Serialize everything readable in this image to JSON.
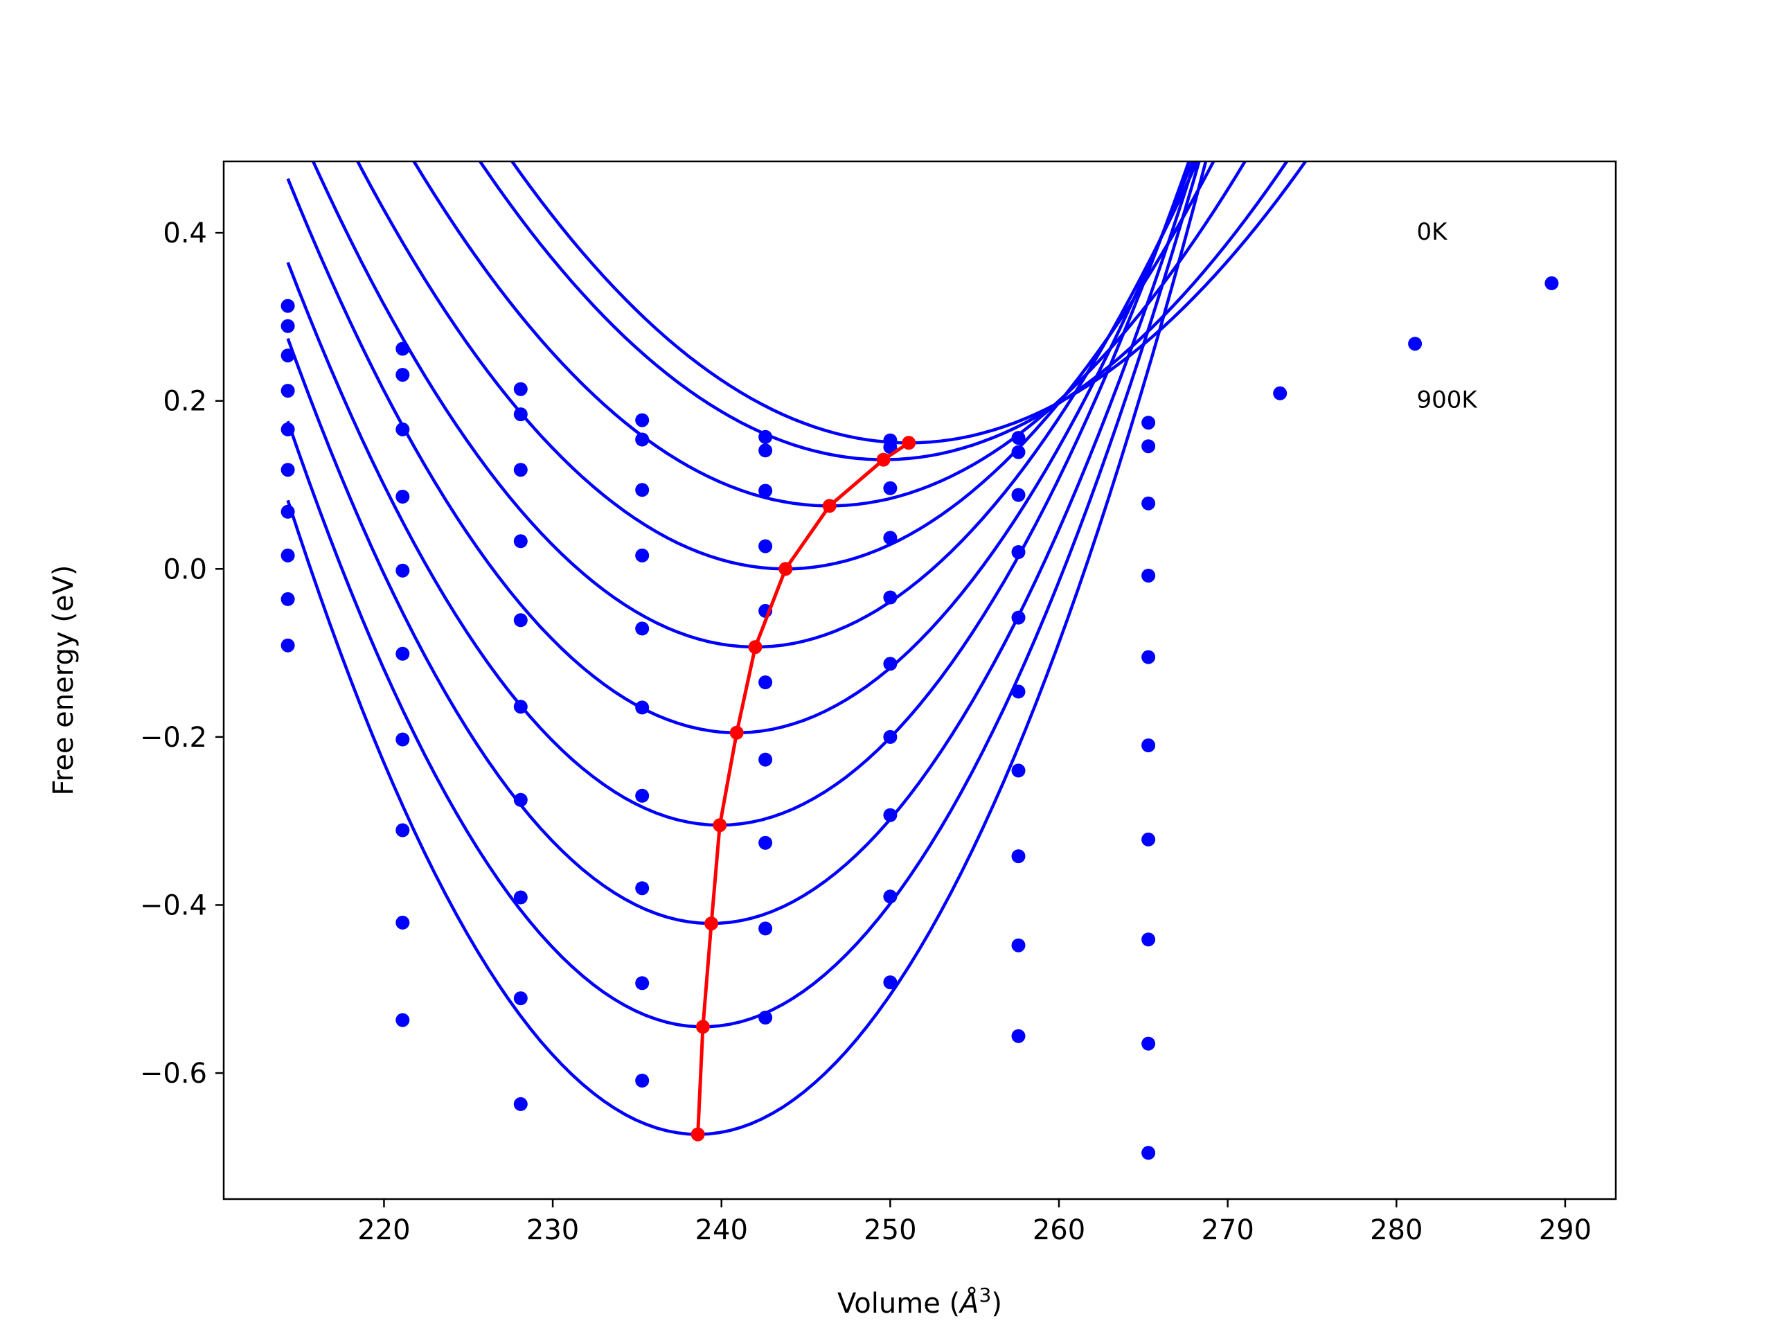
{
  "chart_data": {
    "type": "line",
    "title": "",
    "xlabel": "Volume",
    "xlabel_unit_base": "Å",
    "xlabel_unit_exp": "3",
    "ylabel": "Free energy (eV)",
    "xlim": [
      210.5,
      293
    ],
    "ylim": [
      -0.75,
      0.485
    ],
    "xticks": [
      220,
      230,
      240,
      250,
      260,
      270,
      280,
      290
    ],
    "yticks": [
      -0.6,
      -0.4,
      -0.2,
      0.0,
      0.2,
      0.4
    ],
    "ytick_labels": [
      "−0.6",
      "−0.4",
      "−0.2",
      "0.0",
      "0.2",
      "0.4"
    ],
    "annotations": [
      {
        "text": "0K",
        "x": 281.2,
        "y": 0.392
      },
      {
        "text": "900K",
        "x": 281.2,
        "y": 0.192
      }
    ],
    "volumes": [
      214.3,
      221.1,
      228.1,
      235.3,
      242.6,
      250.0,
      257.6,
      265.3,
      273.1,
      281.1,
      289.2
    ],
    "fit_x_range": [
      214.3,
      289.2
    ],
    "colors": {
      "curves": "#0000ff",
      "minima": "#ff0000",
      "frame": "#000000"
    },
    "series": [
      {
        "curve": {
          "vmin": 251.1,
          "fmin": 0.15,
          "a": 0.000606
        },
        "points": [
          0.313,
          0.262,
          0.214,
          0.177,
          0.157,
          0.153,
          0.156,
          0.174,
          0.209,
          0.268,
          0.34
        ]
      },
      {
        "curve": {
          "vmin": 249.6,
          "fmin": 0.13,
          "a": 0.000621
        },
        "points": [
          0.289,
          0.231,
          0.184,
          0.154,
          0.141,
          0.145,
          0.139,
          0.146
        ]
      },
      {
        "curve": {
          "vmin": 246.4,
          "fmin": 0.075,
          "a": 0.000676
        },
        "points": [
          0.254,
          0.166,
          0.118,
          0.094,
          0.093,
          0.096,
          0.088,
          0.078
        ]
      },
      {
        "curve": {
          "vmin": 243.8,
          "fmin": 0.0,
          "a": 0.000754
        },
        "points": [
          0.212,
          0.086,
          0.033,
          0.016,
          0.027,
          0.037,
          0.02,
          -0.008
        ]
      },
      {
        "curve": {
          "vmin": 242.0,
          "fmin": -0.093,
          "a": 0.000842
        },
        "points": [
          0.166,
          -0.002,
          -0.061,
          -0.071,
          -0.05,
          -0.034,
          -0.058,
          -0.105
        ]
      },
      {
        "curve": {
          "vmin": 240.9,
          "fmin": -0.195,
          "a": 0.000932
        },
        "points": [
          0.118,
          -0.101,
          -0.164,
          -0.165,
          -0.135,
          -0.113,
          -0.146,
          -0.21
        ]
      },
      {
        "curve": {
          "vmin": 239.9,
          "fmin": -0.305,
          "a": 0.001022
        },
        "points": [
          0.068,
          -0.203,
          -0.275,
          -0.27,
          -0.227,
          -0.2,
          -0.24,
          -0.322
        ]
      },
      {
        "curve": {
          "vmin": 239.4,
          "fmin": -0.422,
          "a": 0.001105
        },
        "points": [
          0.016,
          -0.311,
          -0.391,
          -0.38,
          -0.326,
          -0.293,
          -0.342,
          -0.441
        ]
      },
      {
        "curve": {
          "vmin": 238.9,
          "fmin": -0.545,
          "a": 0.001191
        },
        "points": [
          -0.036,
          -0.421,
          -0.511,
          -0.493,
          -0.428,
          -0.39,
          -0.448,
          -0.565
        ]
      },
      {
        "curve": {
          "vmin": 238.6,
          "fmin": -0.673,
          "a": 0.001278
        },
        "points": [
          -0.091,
          -0.537,
          -0.637,
          -0.609,
          -0.534,
          -0.492,
          -0.556,
          -0.695
        ]
      }
    ],
    "minima_line": {
      "x": [
        251.1,
        249.6,
        246.4,
        243.8,
        242.0,
        240.9,
        239.9,
        239.4,
        238.9,
        238.6
      ],
      "y": [
        0.15,
        0.13,
        0.075,
        0.0,
        -0.093,
        -0.195,
        -0.305,
        -0.422,
        -0.545,
        -0.673
      ]
    }
  }
}
